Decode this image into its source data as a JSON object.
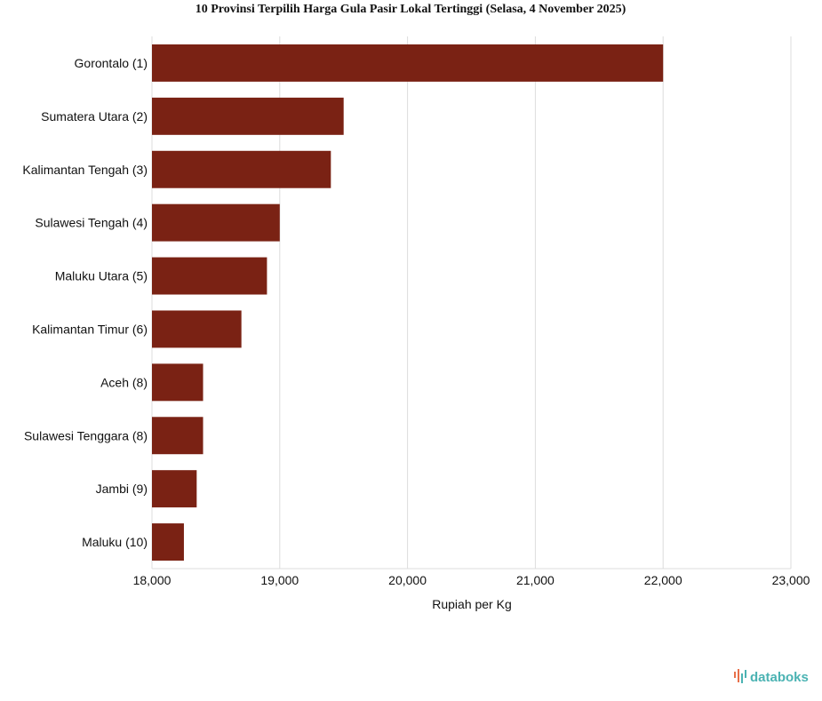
{
  "chart_data": {
    "type": "bar",
    "orientation": "horizontal",
    "title": "10 Provinsi Terpilih Harga Gula Pasir Lokal Tertinggi (Selasa, 4 November 2025)",
    "xlabel": "Rupiah per Kg",
    "ylabel": "",
    "categories": [
      "Gorontalo (1)",
      "Sumatera Utara (2)",
      "Kalimantan Tengah (3)",
      "Sulawesi Tengah (4)",
      "Maluku Utara (5)",
      "Kalimantan Timur (6)",
      "Aceh (8)",
      "Sulawesi Tenggara (8)",
      "Jambi (9)",
      "Maluku (10)"
    ],
    "values": [
      22000,
      19500,
      19400,
      19000,
      18900,
      18700,
      18400,
      18400,
      18350,
      18250
    ],
    "xlim": [
      18000,
      23000
    ],
    "ticks": [
      18000,
      19000,
      20000,
      21000,
      22000,
      23000
    ],
    "tick_labels": [
      "18,000",
      "19,000",
      "20,000",
      "21,000",
      "22,000",
      "23,000"
    ],
    "grid": true,
    "bar_color": "#7a2214"
  },
  "brand": {
    "name": "databoks",
    "icon": "databoks-logo-icon",
    "color": "#4bb3b3",
    "accent": "#e8704a"
  }
}
